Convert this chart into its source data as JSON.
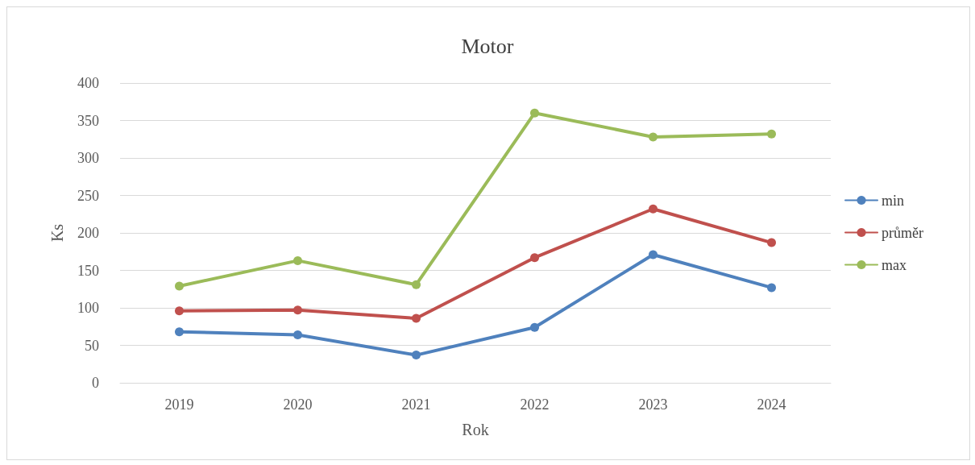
{
  "chart_data": {
    "type": "line",
    "title": "Motor",
    "xlabel": "Rok",
    "ylabel": "Ks",
    "categories": [
      "2019",
      "2020",
      "2021",
      "2022",
      "2023",
      "2024"
    ],
    "series": [
      {
        "name": "min",
        "color": "#4f81bd",
        "values": [
          68,
          64,
          37,
          74,
          171,
          127
        ]
      },
      {
        "name": "průměr",
        "color": "#c0504d",
        "values": [
          96,
          97,
          86,
          167,
          232,
          187
        ]
      },
      {
        "name": "max",
        "color": "#9bbb59",
        "values": [
          129,
          163,
          131,
          360,
          328,
          332
        ]
      }
    ],
    "ylim": [
      0,
      400
    ],
    "yticks": [
      0,
      50,
      100,
      150,
      200,
      250,
      300,
      350,
      400
    ],
    "grid": "y",
    "legend": "right",
    "marker": "circle",
    "line_style": "solid"
  }
}
